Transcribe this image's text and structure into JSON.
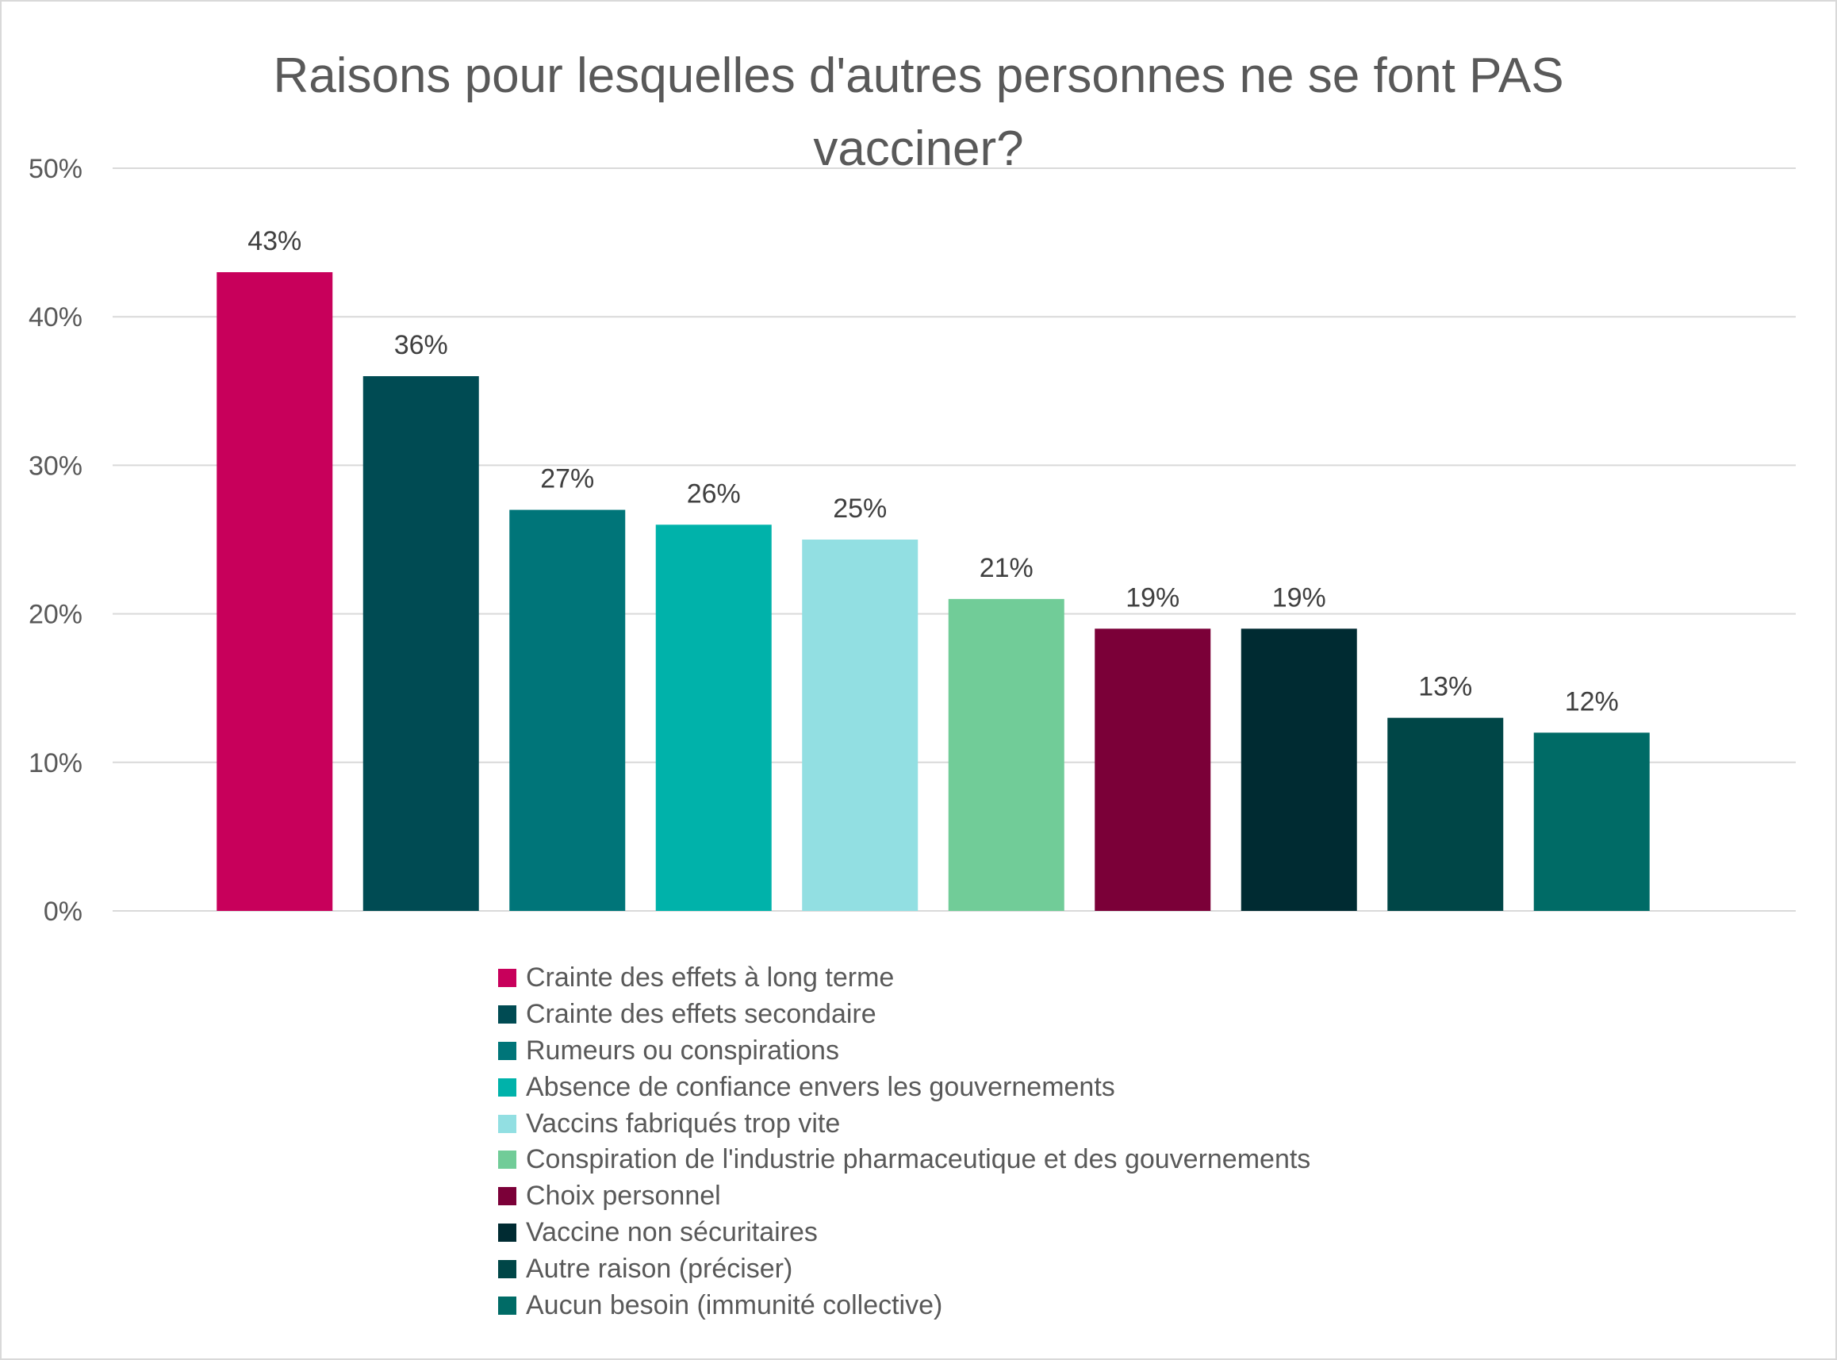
{
  "chart_data": {
    "type": "bar",
    "title_lines": [
      "Raisons pour lesquelles d'autres personnes ne se font PAS",
      "vacciner?"
    ],
    "xlabel": "",
    "ylabel": "",
    "ylim": [
      0,
      50
    ],
    "y_ticks": [
      0,
      10,
      20,
      30,
      40,
      50
    ],
    "y_tick_labels": [
      "0%",
      "10%",
      "20%",
      "30%",
      "40%",
      "50%"
    ],
    "grid": true,
    "legend_position": "bottom",
    "categories": [
      "Crainte des effets à long terme",
      "Crainte des effets secondaire",
      "Rumeurs ou conspirations",
      "Absence de confiance envers les gouvernements",
      "Vaccins fabriqués trop vite",
      "Conspiration de l'industrie pharmaceutique et des gouvernements",
      "Choix personnel",
      "Vaccine non sécuritaires",
      "Autre raison (préciser)",
      "Aucun besoin (immunité collective)"
    ],
    "values": [
      43,
      36,
      27,
      26,
      25,
      21,
      19,
      19,
      13,
      12
    ],
    "data_labels": [
      "43%",
      "36%",
      "27%",
      "26%",
      "25%",
      "21%",
      "19%",
      "19%",
      "13%",
      "12%"
    ],
    "colors": [
      "#c8005b",
      "#004b53",
      "#007579",
      "#00b2aa",
      "#92dfe2",
      "#71cc98",
      "#7b0038",
      "#002b32",
      "#004647",
      "#006b66"
    ]
  }
}
